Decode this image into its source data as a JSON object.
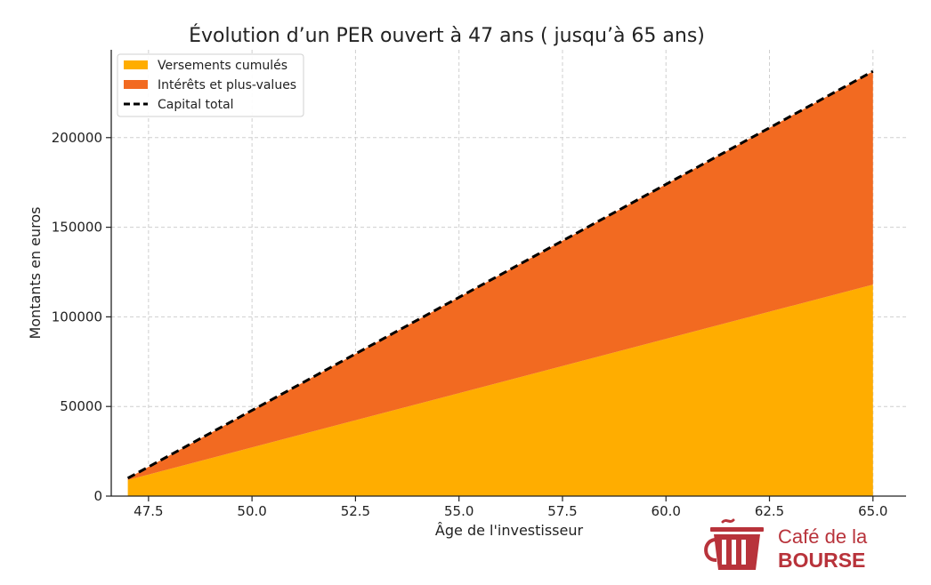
{
  "chart_data": {
    "type": "area",
    "stacked": true,
    "title": "Évolution d’un PER ouvert à 47 ans ( jusqu’à 65 ans)",
    "xlabel": "Âge de l'investisseur",
    "ylabel": "Montants en euros",
    "xlim": [
      46.6,
      65.8
    ],
    "ylim": [
      0,
      249000
    ],
    "x_ticks": [
      47.5,
      50.0,
      52.5,
      55.0,
      57.5,
      60.0,
      62.5,
      65.0
    ],
    "x_tick_labels": [
      "47.5",
      "50.0",
      "52.5",
      "55.0",
      "57.5",
      "60.0",
      "62.5",
      "65.0"
    ],
    "y_ticks": [
      0,
      50000,
      100000,
      150000,
      200000
    ],
    "y_tick_labels": [
      "0",
      "50000",
      "100000",
      "150000",
      "200000"
    ],
    "grid": true,
    "legend_position": "top-left",
    "x": [
      47,
      65
    ],
    "series": [
      {
        "name": "Versements cumulés",
        "kind": "area",
        "color": "#ffad00",
        "values": [
          9000,
          118000
        ]
      },
      {
        "name": "Intérêts et plus-values",
        "kind": "area",
        "color": "#f26a21",
        "values": [
          1000,
          119000
        ]
      },
      {
        "name": "Capital total",
        "kind": "dashed-line",
        "color": "#000000",
        "values": [
          10000,
          237000
        ]
      }
    ]
  },
  "brand": {
    "line1": "Café de la",
    "line2": "BOURSE",
    "color": "#b8333b",
    "logo_icon": "coffee-cup-icon"
  }
}
